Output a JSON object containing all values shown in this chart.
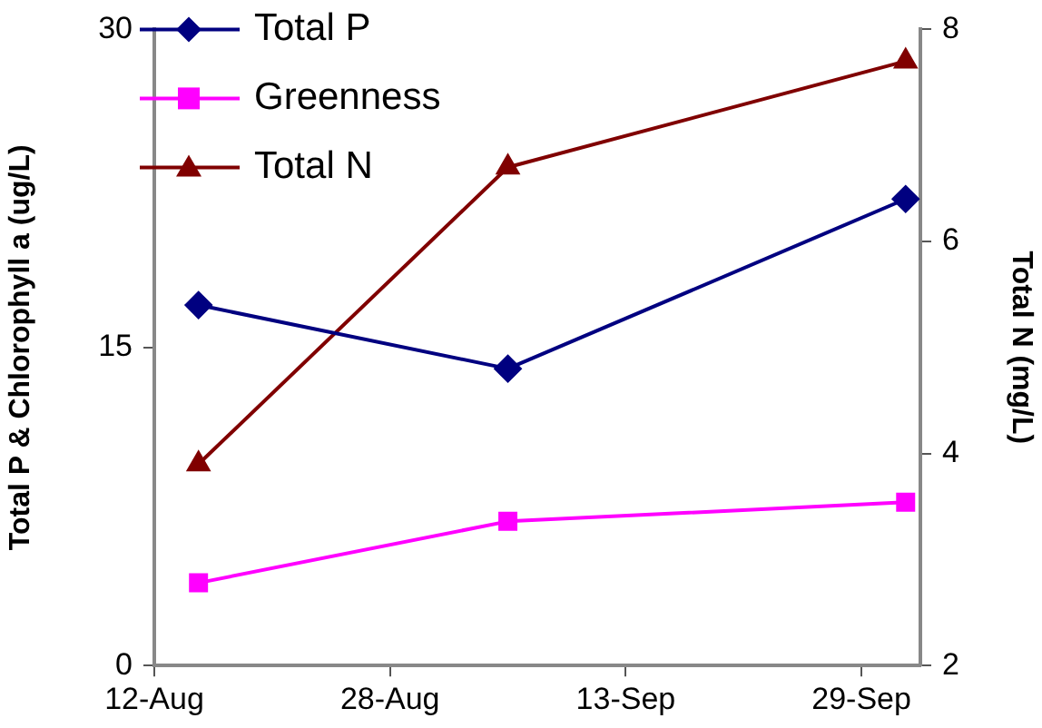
{
  "chart_data": {
    "type": "line",
    "ylabel": "Total P & Chlorophyll a (ug/L)",
    "y2label": "Total N (mg/L)",
    "x": [
      "--08-15",
      "--09-05",
      "--10-02"
    ],
    "xlim": [
      "--08-12",
      "--10-03"
    ],
    "xticks": [
      {
        "value": "--08-12",
        "label": "12-Aug"
      },
      {
        "value": "--08-28",
        "label": "28-Aug"
      },
      {
        "value": "--09-13",
        "label": "13-Sep"
      },
      {
        "value": "--09-29",
        "label": "29-Sep"
      }
    ],
    "ylim": [
      0,
      30
    ],
    "yticks": [
      0,
      15,
      30
    ],
    "y2lim": [
      2,
      8
    ],
    "y2ticks": [
      2,
      4,
      6,
      8
    ],
    "series": [
      {
        "name": "Total P",
        "color": "#000080",
        "marker": "diamond",
        "values": [
          17,
          14,
          22
        ]
      },
      {
        "name": "Greenness",
        "color": "#ff00ff",
        "marker": "square",
        "values": [
          3.9,
          6.8,
          7.7
        ]
      },
      {
        "name": "Total N",
        "color": "#800000",
        "marker": "triangle",
        "axis": "y2",
        "values": [
          3.9,
          6.7,
          7.7
        ]
      }
    ],
    "legend": "top left",
    "grid": false
  }
}
